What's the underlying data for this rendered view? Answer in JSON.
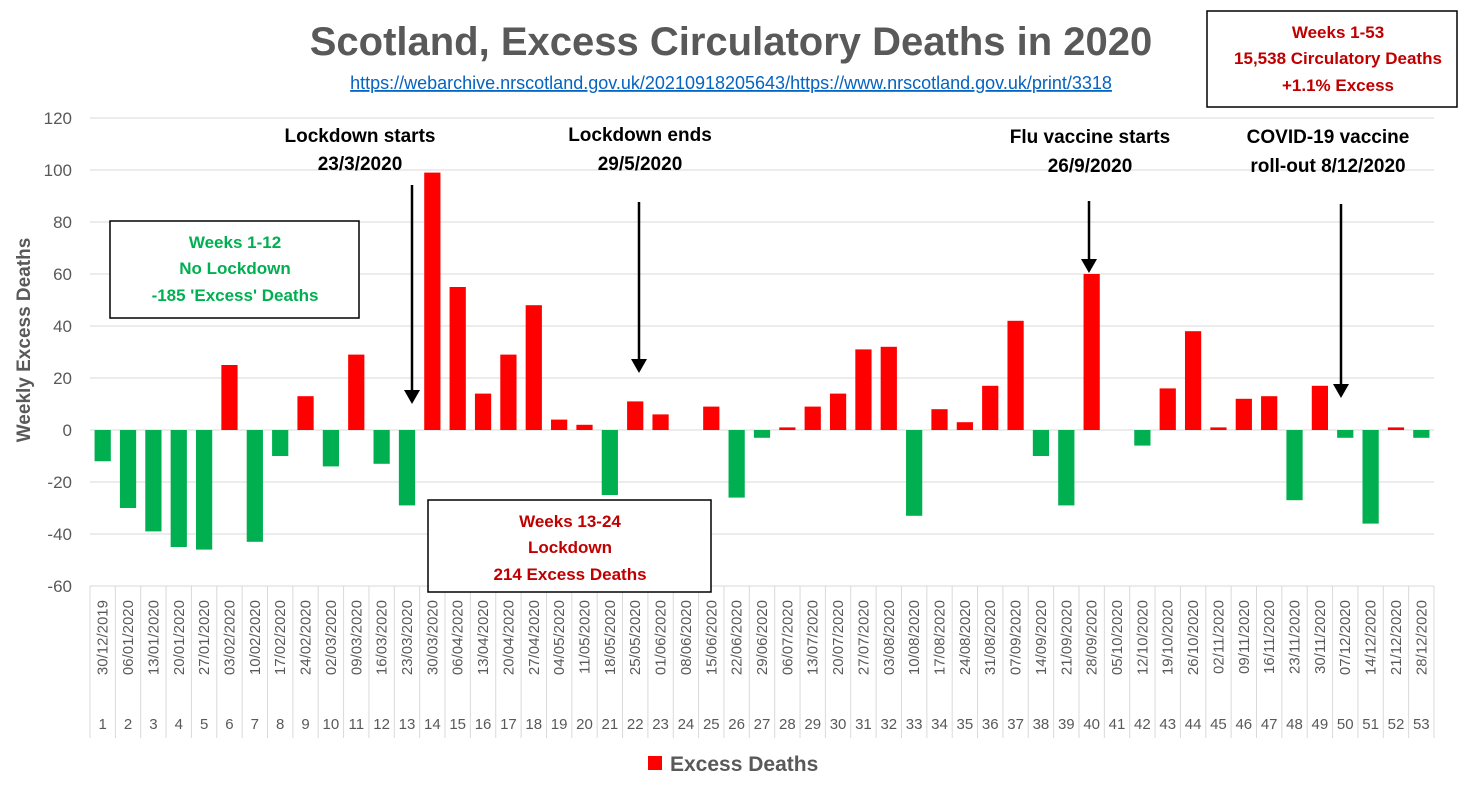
{
  "colors": {
    "positive": "#ff0000",
    "negative": "#00b050",
    "box_red_text": "#c00000",
    "box_green_text": "#00b050",
    "grid": "#d9d9d9",
    "axis_text": "#595959"
  },
  "chart_data": {
    "type": "bar",
    "title": "Scotland, Excess Circulatory Deaths in 2020",
    "subtitle": "https://webarchive.nrscotland.gov.uk/20210918205643/https://www.nrscotland.gov.uk/print/3318",
    "ylabel": "Weekly Excess Deaths",
    "xlabel": "",
    "ylim": [
      -60,
      120
    ],
    "yticks": [
      -60,
      -40,
      -20,
      0,
      20,
      40,
      60,
      80,
      100,
      120
    ],
    "grid": true,
    "legend_position": "bottom",
    "weeks": [
      "1",
      "2",
      "3",
      "4",
      "5",
      "6",
      "7",
      "8",
      "9",
      "10",
      "11",
      "12",
      "13",
      "14",
      "15",
      "16",
      "17",
      "18",
      "19",
      "20",
      "21",
      "22",
      "23",
      "24",
      "25",
      "26",
      "27",
      "28",
      "29",
      "30",
      "31",
      "32",
      "33",
      "34",
      "35",
      "36",
      "37",
      "38",
      "39",
      "40",
      "41",
      "42",
      "43",
      "44",
      "45",
      "46",
      "47",
      "48",
      "49",
      "50",
      "51",
      "52",
      "53"
    ],
    "categories": [
      "30/12/2019",
      "06/01/2020",
      "13/01/2020",
      "20/01/2020",
      "27/01/2020",
      "03/02/2020",
      "10/02/2020",
      "17/02/2020",
      "24/02/2020",
      "02/03/2020",
      "09/03/2020",
      "16/03/2020",
      "23/03/2020",
      "30/03/2020",
      "06/04/2020",
      "13/04/2020",
      "20/04/2020",
      "27/04/2020",
      "04/05/2020",
      "11/05/2020",
      "18/05/2020",
      "25/05/2020",
      "01/06/2020",
      "08/06/2020",
      "15/06/2020",
      "22/06/2020",
      "29/06/2020",
      "06/07/2020",
      "13/07/2020",
      "20/07/2020",
      "27/07/2020",
      "03/08/2020",
      "10/08/2020",
      "17/08/2020",
      "24/08/2020",
      "31/08/2020",
      "07/09/2020",
      "14/09/2020",
      "21/09/2020",
      "28/09/2020",
      "05/10/2020",
      "12/10/2020",
      "19/10/2020",
      "26/10/2020",
      "02/11/2020",
      "09/11/2020",
      "16/11/2020",
      "23/11/2020",
      "30/11/2020",
      "07/12/2020",
      "14/12/2020",
      "21/12/2020",
      "28/12/2020"
    ],
    "series": [
      {
        "name": "Excess Deaths",
        "values": [
          -12,
          -30,
          -39,
          -45,
          -46,
          25,
          -43,
          -10,
          13,
          -14,
          29,
          -13,
          -29,
          99,
          55,
          14,
          29,
          48,
          4,
          2,
          -25,
          11,
          6,
          0,
          9,
          -26,
          -3,
          1,
          9,
          14,
          31,
          32,
          -33,
          8,
          3,
          17,
          42,
          -10,
          -29,
          60,
          0,
          -6,
          16,
          38,
          1,
          12,
          13,
          -27,
          17,
          -3,
          -36,
          1,
          -3
        ]
      }
    ],
    "annotations": [
      {
        "lines": [
          "Lockdown starts",
          "23/3/2020"
        ],
        "week": 13
      },
      {
        "lines": [
          "Lockdown ends",
          "29/5/2020"
        ],
        "week": 22
      },
      {
        "lines": [
          "Flu vaccine starts",
          "26/9/2020"
        ],
        "week": 40
      },
      {
        "lines": [
          "COVID-19 vaccine",
          "roll-out 8/12/2020"
        ],
        "week": 50
      }
    ],
    "boxes": [
      {
        "lines": [
          "Weeks 1-12",
          "No Lockdown",
          "-185 'Excess' Deaths"
        ],
        "color": "#00b050"
      },
      {
        "lines": [
          "Weeks 13-24",
          "Lockdown",
          "214 Excess Deaths"
        ],
        "color": "#c00000"
      },
      {
        "lines": [
          "Weeks 1-53",
          "15,538 Circulatory Deaths",
          "+1.1% Excess"
        ],
        "color": "#c00000"
      }
    ]
  }
}
